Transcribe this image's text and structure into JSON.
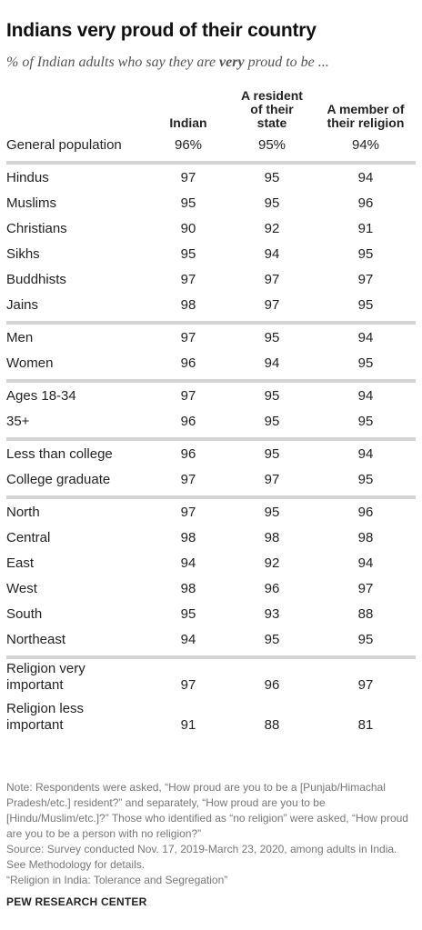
{
  "title": "Indians very proud of their country",
  "subtitle_pre": "% of Indian adults who say they are ",
  "subtitle_em": "very",
  "subtitle_post": " proud to be ...",
  "chart_data": {
    "type": "table",
    "columns": [
      "Indian",
      "A resident of their state",
      "A member of their religion"
    ],
    "column_lines": [
      [
        "Indian"
      ],
      [
        "A resident",
        "of their",
        "state"
      ],
      [
        "A member of",
        "their religion"
      ]
    ],
    "groups": [
      [
        {
          "label": "General population",
          "values": [
            "96%",
            "95%",
            "94%"
          ]
        }
      ],
      [
        {
          "label": "Hindus",
          "values": [
            "97",
            "95",
            "94"
          ]
        },
        {
          "label": "Muslims",
          "values": [
            "95",
            "95",
            "96"
          ]
        },
        {
          "label": "Christians",
          "values": [
            "90",
            "92",
            "91"
          ]
        },
        {
          "label": "Sikhs",
          "values": [
            "95",
            "94",
            "95"
          ]
        },
        {
          "label": "Buddhists",
          "values": [
            "97",
            "97",
            "97"
          ]
        },
        {
          "label": "Jains",
          "values": [
            "98",
            "97",
            "95"
          ]
        }
      ],
      [
        {
          "label": "Men",
          "values": [
            "97",
            "95",
            "94"
          ]
        },
        {
          "label": "Women",
          "values": [
            "96",
            "94",
            "95"
          ]
        }
      ],
      [
        {
          "label": "Ages 18-34",
          "values": [
            "97",
            "95",
            "94"
          ]
        },
        {
          "label": "35+",
          "values": [
            "96",
            "95",
            "95"
          ]
        }
      ],
      [
        {
          "label": "Less than college",
          "values": [
            "96",
            "95",
            "94"
          ]
        },
        {
          "label": "College graduate",
          "values": [
            "97",
            "97",
            "95"
          ]
        }
      ],
      [
        {
          "label": "North",
          "values": [
            "97",
            "95",
            "96"
          ]
        },
        {
          "label": "Central",
          "values": [
            "98",
            "98",
            "98"
          ]
        },
        {
          "label": "East",
          "values": [
            "94",
            "92",
            "94"
          ]
        },
        {
          "label": "West",
          "values": [
            "98",
            "96",
            "97"
          ]
        },
        {
          "label": "South",
          "values": [
            "95",
            "93",
            "88"
          ]
        },
        {
          "label": "Northeast",
          "values": [
            "94",
            "95",
            "95"
          ]
        }
      ],
      [
        {
          "label": "Religion very important",
          "label_lines": [
            "Religion very",
            "important"
          ],
          "values": [
            "97",
            "96",
            "97"
          ]
        },
        {
          "label": "Religion less important",
          "label_lines": [
            "Religion less",
            "important"
          ],
          "values": [
            "91",
            "88",
            "81"
          ]
        }
      ]
    ]
  },
  "notes": [
    "Note: Respondents were asked, “How proud are you to be a [Punjab/Himachal Pradesh/etc.] resident?” and separately, “How proud are you to be [Hindu/Muslim/etc.]?” Those who identified as “no religion” were asked, “How proud are you to be a person with no religion?”",
    "Source: Survey conducted Nov. 17, 2019-March 23, 2020, among adults in India. See Methodology for details.",
    "“Religion in India: Tolerance and Segregation”"
  ],
  "brand": "PEW RESEARCH CENTER"
}
